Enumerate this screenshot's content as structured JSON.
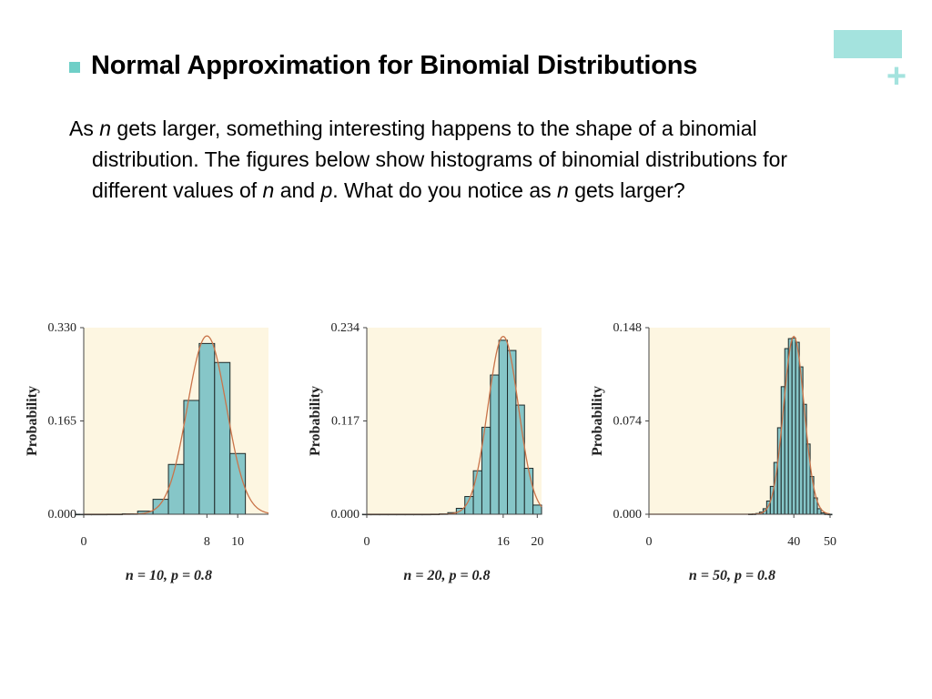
{
  "slide": {
    "title": "Normal Approximation for Binomial Distributions",
    "paragraph": {
      "p1": "As ",
      "n1": "n",
      "p2": " gets larger, something interesting happens to the shape of a binomial distribution.  The figures below show histograms of binomial distributions for different values of ",
      "n2": "n",
      "p3": " and ",
      "p_sym": "p",
      "p4": ". What do you notice as ",
      "n3": "n",
      "p5": " gets larger?"
    }
  },
  "colors": {
    "accent": "#a4e3de",
    "bullet": "#6fcfc7",
    "plot_bg": "#fdf6e1",
    "bar_fill": "#86c6c8",
    "curve": "#c9744a"
  },
  "chart_data": [
    {
      "type": "bar",
      "ylabel": "Probability",
      "caption": "n = 10, p = 0.8",
      "n": 10,
      "p": 0.8,
      "xlim": [
        0,
        12
      ],
      "ylim": [
        0,
        0.33
      ],
      "yticks": [
        "0.000",
        "0.165",
        "0.330"
      ],
      "xticks": [
        0,
        8,
        10
      ],
      "x": [
        0,
        1,
        2,
        3,
        4,
        5,
        6,
        7,
        8,
        9,
        10
      ],
      "values": [
        0.0,
        0.0,
        0.0001,
        0.0008,
        0.0055,
        0.0264,
        0.0881,
        0.2013,
        0.302,
        0.2684,
        0.1074
      ]
    },
    {
      "type": "bar",
      "ylabel": "Probability",
      "caption": "n = 20, p = 0.8",
      "n": 20,
      "p": 0.8,
      "xlim": [
        0,
        20.5
      ],
      "ylim": [
        0,
        0.234
      ],
      "yticks": [
        "0.000",
        "0.117",
        "0.234"
      ],
      "xticks": [
        0,
        16,
        20
      ],
      "x": [
        0,
        1,
        2,
        3,
        4,
        5,
        6,
        7,
        8,
        9,
        10,
        11,
        12,
        13,
        14,
        15,
        16,
        17,
        18,
        19,
        20
      ],
      "values": [
        0,
        0,
        0,
        0,
        0,
        0,
        0,
        0,
        0.0001,
        0.0005,
        0.002,
        0.0074,
        0.0222,
        0.0545,
        0.1091,
        0.1746,
        0.2182,
        0.2054,
        0.1369,
        0.0576,
        0.0115
      ]
    },
    {
      "type": "bar",
      "ylabel": "Probability",
      "caption": "n = 50, p = 0.8",
      "n": 50,
      "p": 0.8,
      "xlim": [
        0,
        50
      ],
      "ylim": [
        0,
        0.148
      ],
      "yticks": [
        "0.000",
        "0.074",
        "0.148"
      ],
      "xticks": [
        0,
        40,
        50
      ],
      "x": [
        28,
        29,
        30,
        31,
        32,
        33,
        34,
        35,
        36,
        37,
        38,
        39,
        40,
        41,
        42,
        43,
        44,
        45,
        46,
        47,
        48,
        49,
        50
      ],
      "values": [
        0.0001,
        0.0002,
        0.0006,
        0.0017,
        0.0044,
        0.0105,
        0.0221,
        0.0411,
        0.0686,
        0.1012,
        0.1314,
        0.1393,
        0.1398,
        0.1364,
        0.1169,
        0.0872,
        0.0557,
        0.0299,
        0.013,
        0.0044,
        0.0011,
        0.0002,
        0.0
      ]
    }
  ]
}
